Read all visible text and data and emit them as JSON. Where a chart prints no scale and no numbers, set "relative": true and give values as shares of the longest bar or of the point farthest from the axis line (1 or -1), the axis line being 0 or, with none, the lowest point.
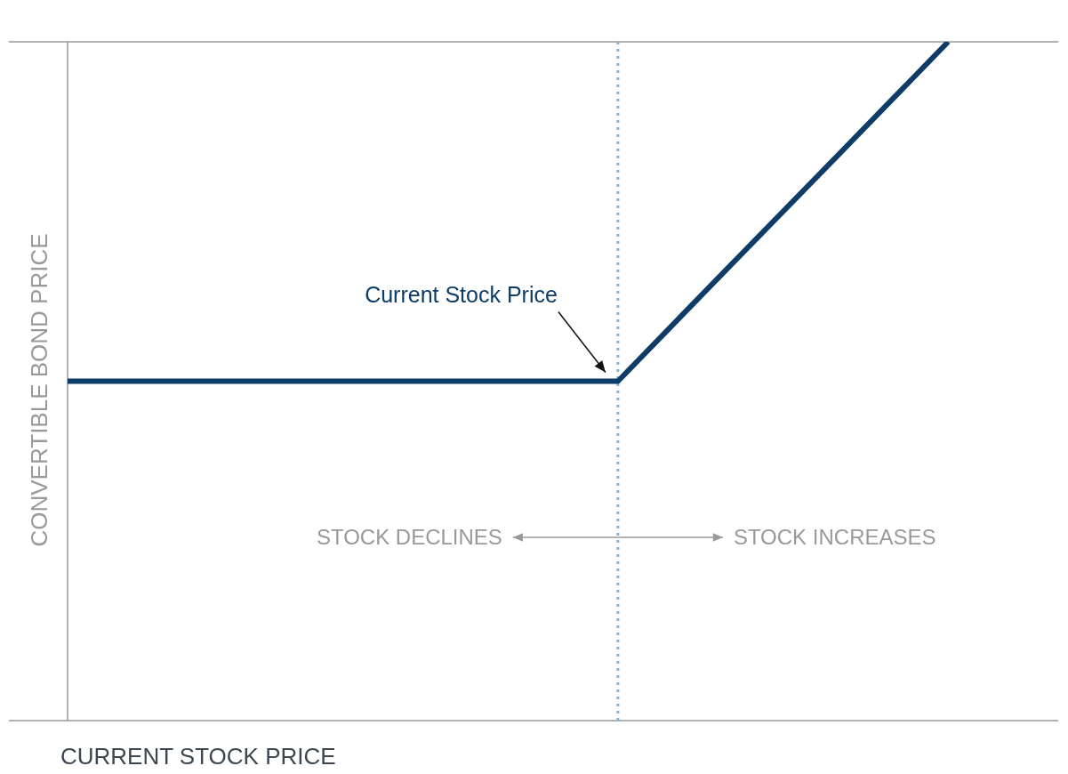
{
  "chart_data": {
    "type": "line",
    "relative": true,
    "xlabel": "CURRENT STOCK PRICE",
    "ylabel": "CONVERTIBLE BOND PRICE",
    "categories": [
      null,
      null,
      null,
      null,
      null,
      null,
      null,
      null,
      null,
      null
    ],
    "series": [
      {
        "color": "#0d3c66",
        "values": [
          0.5,
          0.5,
          0.5,
          0.5,
          0.5,
          0.5,
          0.667,
          0.833,
          1,
          null
        ]
      }
    ],
    "annotations": [
      "Current Stock Price",
      "STOCK DECLINES",
      "STOCK INCREASES"
    ],
    "marker": "none",
    "line_style": "solid",
    "legend": false
  }
}
